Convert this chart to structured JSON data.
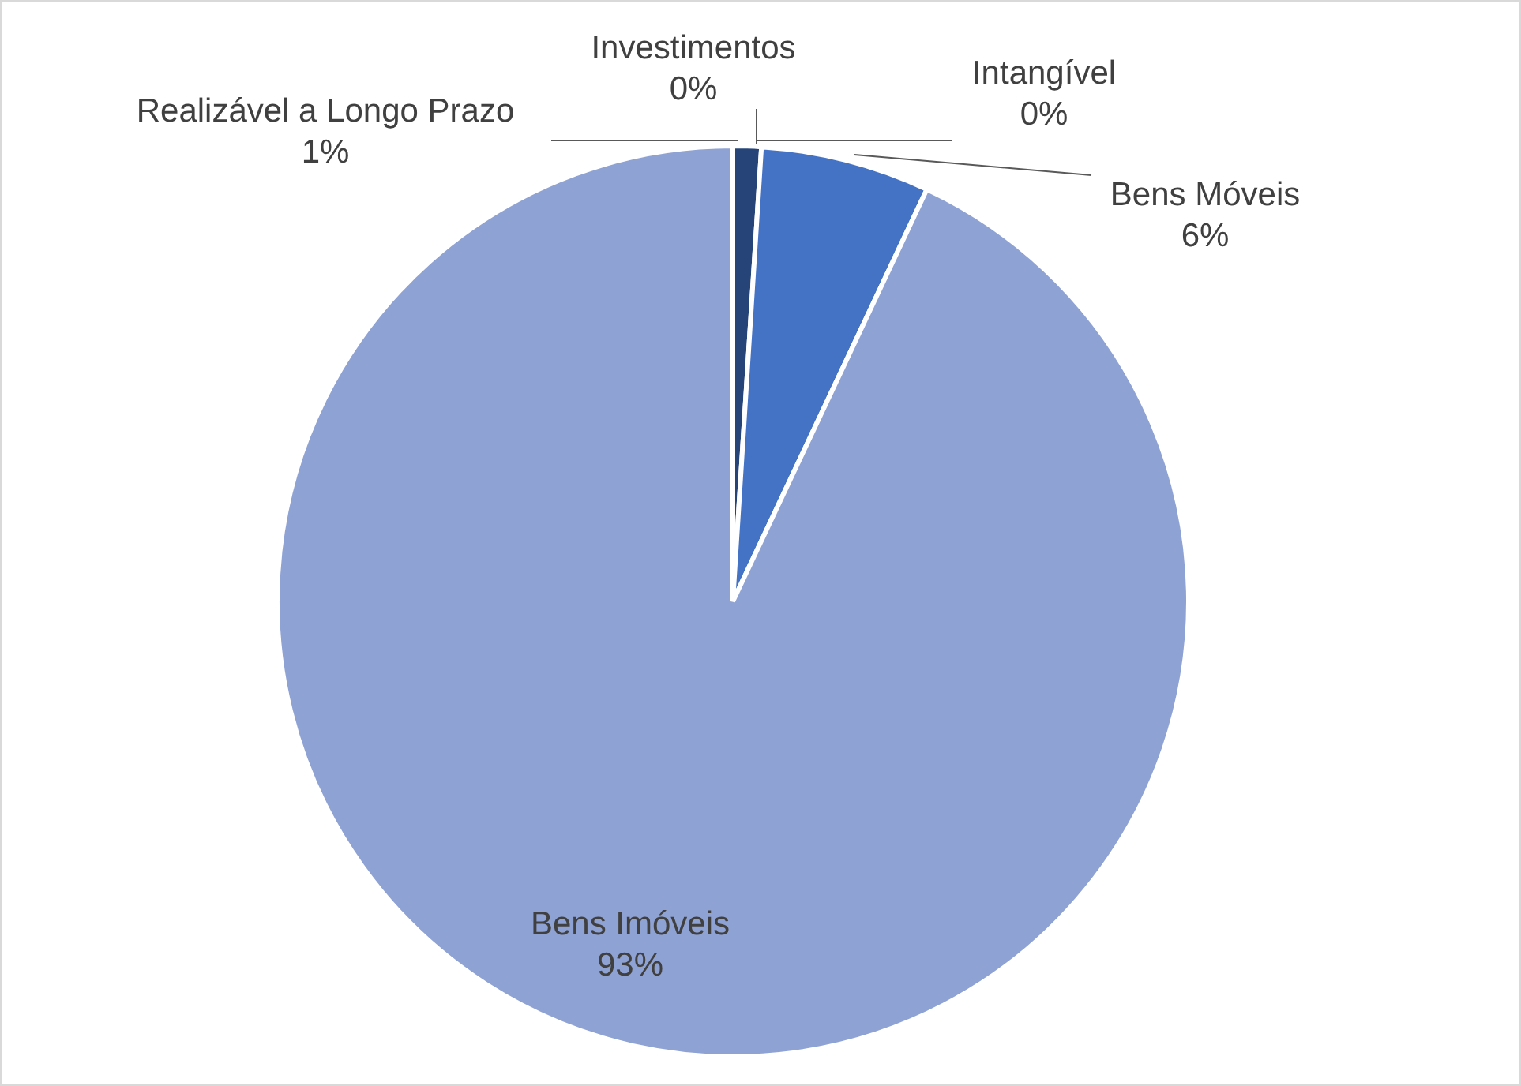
{
  "chart_data": {
    "type": "pie",
    "categories": [
      "Realizável a Longo Prazo",
      "Investimentos",
      "Intangível",
      "Bens Móveis",
      "Bens Imóveis"
    ],
    "values": [
      1,
      0,
      0,
      6,
      93
    ],
    "colors": [
      "#264478",
      "#2f5597",
      "#698ed0",
      "#4472c4",
      "#8fa2d4"
    ],
    "value_labels": [
      "1%",
      "0%",
      "0%",
      "6%",
      "93%"
    ],
    "legend": false
  }
}
